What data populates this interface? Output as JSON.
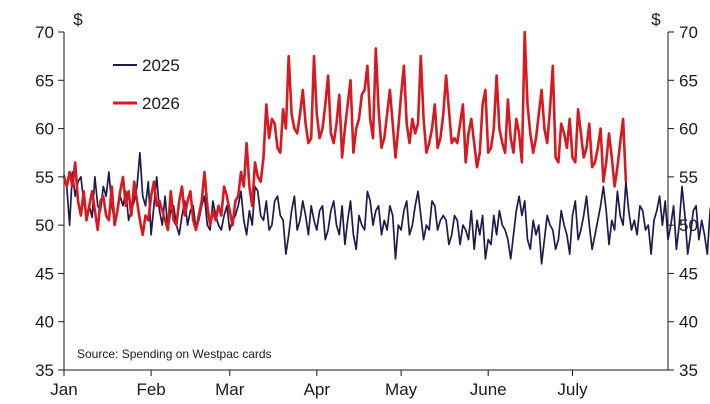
{
  "chart_data": {
    "type": "line",
    "title": "",
    "xlabel": "",
    "y_unit_left": "$",
    "y_unit_right": "$",
    "ylim": [
      35,
      70
    ],
    "y_ticks": [
      "35",
      "40",
      "45",
      "50",
      "55",
      "60",
      "65",
      "70"
    ],
    "x_ticks": [
      "Jan",
      "Feb",
      "Mar",
      "Apr",
      "May",
      "June",
      "July"
    ],
    "xlim_days": [
      0,
      215
    ],
    "x_tick_days": [
      0,
      31,
      59,
      90,
      120,
      151,
      181
    ],
    "legend_position": "top-left",
    "source": "Source: Spending on Westpac cards",
    "grid": false,
    "series": [
      {
        "name": "2025",
        "color": "#1f1a4d",
        "values": [
          55.2,
          54.0,
          50.0,
          55.5,
          53.0,
          54.5,
          55.0,
          52.5,
          51.0,
          52.0,
          50.8,
          55.0,
          52.0,
          51.5,
          54.0,
          53.0,
          55.5,
          52.0,
          50.5,
          51.5,
          53.0,
          52.0,
          53.5,
          50.5,
          51.5,
          52.5,
          54.0,
          57.5,
          53.0,
          52.0,
          54.5,
          49.0,
          52.0,
          55.0,
          51.5,
          50.0,
          53.0,
          49.5,
          51.5,
          52.0,
          50.0,
          49.0,
          51.0,
          52.5,
          50.0,
          51.5,
          52.0,
          49.5,
          50.5,
          52.0,
          53.0,
          50.0,
          49.5,
          52.5,
          51.0,
          50.0,
          49.5,
          51.0,
          52.0,
          49.5,
          50.5,
          51.0,
          52.0,
          53.5,
          50.5,
          49.0,
          51.5,
          50.0,
          54.0,
          53.5,
          51.0,
          50.5,
          52.5,
          49.5,
          50.0,
          52.5,
          53.0,
          51.0,
          50.5,
          47.0,
          49.0,
          51.5,
          53.0,
          49.5,
          50.5,
          52.5,
          51.0,
          49.0,
          52.0,
          50.5,
          49.5,
          51.5,
          52.0,
          48.5,
          49.5,
          51.5,
          52.5,
          50.0,
          49.0,
          52.0,
          48.0,
          50.5,
          52.5,
          49.0,
          47.5,
          51.0,
          50.0,
          49.5,
          53.5,
          52.5,
          50.0,
          51.5,
          52.0,
          49.0,
          50.5,
          49.5,
          52.0,
          51.0,
          46.5,
          50.0,
          49.5,
          51.5,
          52.5,
          49.0,
          50.0,
          52.0,
          53.5,
          51.0,
          48.5,
          50.0,
          49.5,
          52.5,
          52.0,
          49.5,
          50.5,
          51.0,
          50.5,
          48.0,
          49.0,
          51.0,
          50.5,
          48.0,
          50.0,
          49.5,
          48.5,
          51.5,
          47.5,
          50.5,
          49.0,
          51.0,
          46.5,
          48.5,
          48.0,
          51.0,
          49.0,
          51.5,
          50.0,
          49.5,
          48.5,
          46.5,
          49.0,
          51.5,
          53.0,
          51.0,
          52.5,
          48.5,
          47.5,
          50.5,
          49.0,
          50.0,
          46.0,
          48.5,
          51.0,
          50.0,
          49.5,
          47.5,
          48.5,
          51.5,
          50.0,
          49.0,
          47.0,
          51.0,
          52.5,
          48.5,
          49.5,
          51.0,
          53.0,
          50.0,
          47.5,
          49.0,
          50.5,
          52.0,
          54.0,
          51.5,
          48.0,
          50.5,
          49.5,
          53.5,
          51.0,
          50.0,
          54.5,
          51.5,
          49.5,
          50.5,
          49.0,
          52.0,
          51.5,
          49.5,
          50.0,
          47.0,
          50.5,
          51.5,
          53.0,
          50.0,
          52.5,
          48.5,
          50.0,
          52.0,
          47.5,
          50.0,
          54.0,
          51.0,
          47.0,
          49.0,
          51.5,
          52.0,
          48.5,
          50.5,
          49.0,
          47.0,
          51.5,
          53.5,
          52.0,
          48.0,
          47.0,
          49.5,
          50.0
        ]
      },
      {
        "name": "2026",
        "color": "#d71920",
        "values": [
          55.0,
          54.0,
          55.5,
          54.0,
          56.5,
          52.5,
          51.0,
          53.5,
          50.5,
          52.0,
          53.5,
          51.5,
          49.5,
          52.5,
          53.0,
          51.0,
          50.5,
          54.0,
          50.0,
          51.5,
          53.5,
          55.0,
          52.0,
          53.5,
          51.0,
          54.5,
          52.5,
          50.5,
          49.0,
          51.0,
          50.5,
          53.0,
          54.5,
          52.0,
          52.5,
          51.5,
          50.5,
          49.5,
          53.5,
          50.5,
          50.0,
          52.5,
          54.0,
          51.0,
          52.5,
          53.5,
          50.5,
          49.5,
          51.0,
          52.5,
          55.5,
          52.0,
          50.0,
          51.5,
          50.5,
          52.0,
          51.0,
          54.0,
          53.0,
          51.5,
          50.0,
          52.5,
          53.0,
          55.5,
          54.0,
          58.5,
          54.0,
          52.0,
          56.5,
          55.0,
          54.5,
          57.0,
          62.5,
          59.0,
          61.0,
          60.5,
          58.0,
          57.5,
          62.0,
          60.0,
          67.5,
          61.5,
          60.0,
          59.5,
          61.5,
          64.0,
          60.5,
          58.5,
          59.0,
          67.5,
          61.5,
          59.0,
          60.0,
          62.5,
          65.5,
          59.5,
          58.5,
          60.5,
          63.5,
          57.0,
          60.0,
          62.5,
          65.0,
          57.5,
          60.0,
          61.0,
          63.5,
          64.0,
          66.5,
          61.0,
          59.0,
          68.3,
          62.0,
          58.0,
          59.0,
          61.5,
          64.0,
          60.5,
          57.0,
          60.0,
          63.5,
          66.5,
          60.5,
          58.5,
          61.0,
          59.5,
          60.5,
          67.5,
          61.0,
          57.5,
          58.5,
          60.0,
          62.5,
          58.0,
          59.0,
          61.5,
          65.5,
          62.0,
          58.5,
          59.0,
          58.5,
          60.5,
          62.5,
          56.5,
          59.5,
          61.0,
          58.5,
          56.0,
          57.5,
          62.5,
          64.0,
          57.5,
          58.0,
          60.0,
          65.5,
          60.0,
          58.5,
          57.5,
          63.0,
          59.0,
          57.5,
          61.0,
          59.5,
          56.5,
          70.0,
          62.5,
          59.5,
          57.5,
          59.0,
          61.5,
          64.0,
          60.0,
          58.5,
          62.0,
          66.5,
          57.0,
          56.5,
          60.5,
          59.5,
          58.0,
          61.0,
          57.0,
          56.5,
          62.0,
          59.5,
          57.0,
          58.0,
          60.5,
          56.0,
          56.5,
          58.0,
          60.0,
          54.5,
          56.5,
          59.5,
          57.0,
          54.0,
          56.0,
          58.5,
          61.0,
          54.5
        ]
      }
    ]
  }
}
